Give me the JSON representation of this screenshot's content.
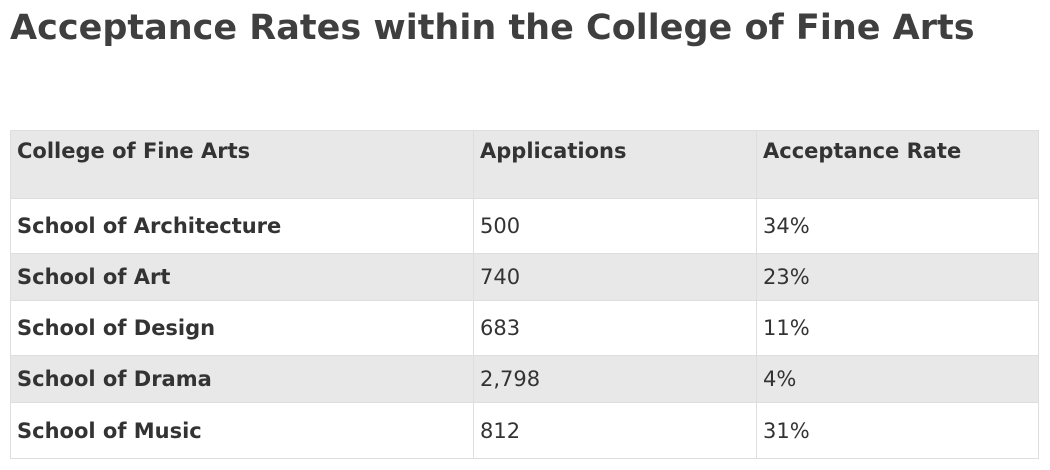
{
  "page": {
    "title": "Acceptance Rates within the College of Fine Arts"
  },
  "table": {
    "headers": [
      "College of Fine Arts",
      "Applications",
      "Acceptance Rate"
    ],
    "rows": [
      {
        "school": "School of Architecture",
        "applications": "500",
        "rate": "34%"
      },
      {
        "school": "School of Art",
        "applications": "740",
        "rate": "23%"
      },
      {
        "school": "School of Design",
        "applications": "683",
        "rate": "11%"
      },
      {
        "school": "School of Drama",
        "applications": "2,798",
        "rate": "4%"
      },
      {
        "school": "School of Music",
        "applications": "812",
        "rate": "31%"
      }
    ]
  },
  "colors": {
    "header_bg": "#e8e8e8",
    "stripe_bg": "#e8e8e8",
    "border": "#dedede",
    "text": "#333333"
  }
}
